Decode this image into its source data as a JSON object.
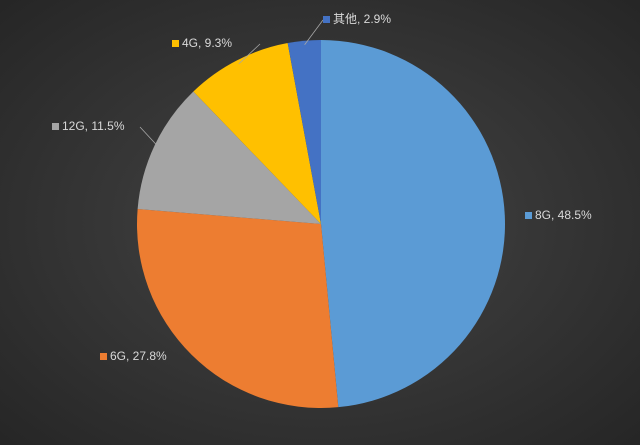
{
  "chart_data": {
    "type": "pie",
    "values": [
      48.5,
      27.8,
      11.5,
      9.3,
      2.9
    ],
    "value_labels": [
      "8G, 48.5%",
      "6G, 27.8%",
      "12G, 11.5%",
      "4G, 9.3%",
      "其他, 2.9%"
    ],
    "colors": [
      "#5b9bd5",
      "#ed7d31",
      "#a5a5a5",
      "#ffc000",
      "#4472c4"
    ]
  }
}
